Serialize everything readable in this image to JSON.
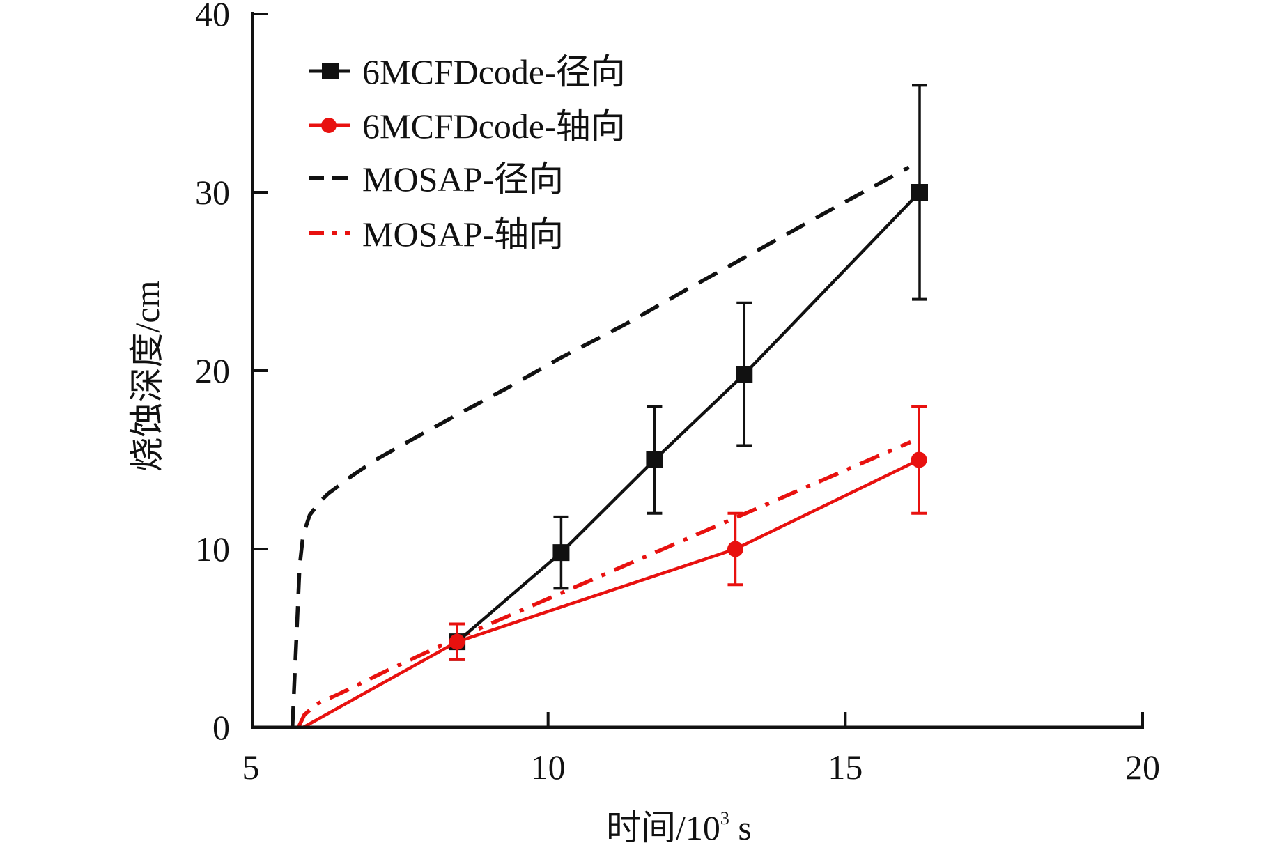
{
  "chart_data": {
    "type": "line",
    "title": "",
    "xlabel": "时间/10³ s",
    "xlabel_main": "时间/10",
    "xlabel_sup": "3",
    "xlabel_unit": " s",
    "ylabel": "烧蚀深度/cm",
    "xlim": [
      5,
      20
    ],
    "ylim": [
      0,
      40
    ],
    "xticks": [
      5,
      10,
      15,
      20
    ],
    "yticks": [
      0,
      10,
      20,
      30,
      40
    ],
    "xtick_labels": [
      "5",
      "10",
      "15",
      "20"
    ],
    "ytick_labels": [
      "0",
      "10",
      "20",
      "30",
      "40"
    ],
    "grid": false,
    "legend_position": "top-left",
    "series": [
      {
        "name": "6MCFDcode-径向",
        "color": "#111111",
        "style": "solid",
        "marker": "square",
        "x": [
          8.47,
          10.22,
          11.79,
          13.3,
          16.25
        ],
        "y": [
          4.8,
          9.8,
          15.0,
          19.8,
          30.0
        ],
        "yerr": [
          1.0,
          2.0,
          3.0,
          4.0,
          6.0
        ]
      },
      {
        "name": "6MCFDcode-轴向",
        "color": "#e8110f",
        "style": "solid",
        "marker": "circle",
        "x": [
          5.88,
          8.47,
          13.15,
          16.24
        ],
        "y": [
          0.0,
          4.8,
          10.0,
          15.0
        ],
        "yerr": [
          null,
          1.0,
          2.0,
          3.0
        ]
      },
      {
        "name": "MOSAP-径向",
        "color": "#111111",
        "style": "dashed",
        "marker": "none",
        "x": [
          5.7,
          5.74,
          5.78,
          5.82,
          5.88,
          5.99,
          6.15,
          6.3,
          6.7,
          7.1,
          7.8,
          8.4,
          9.3,
          10.2,
          11.3,
          12.36,
          13.5,
          14.8,
          16.07
        ],
        "y": [
          0.0,
          3.0,
          6.0,
          9.0,
          10.8,
          11.9,
          12.6,
          13.1,
          14.1,
          15.0,
          16.3,
          17.4,
          19.0,
          20.7,
          22.6,
          24.6,
          26.7,
          29.1,
          31.4
        ]
      },
      {
        "name": "MOSAP-轴向",
        "color": "#e8110f",
        "style": "dash-dot",
        "marker": "none",
        "x": [
          5.8,
          5.9,
          6.1,
          6.5,
          7.3,
          8.47,
          10.2,
          13.15,
          16.1
        ],
        "y": [
          0.0,
          0.7,
          1.3,
          1.9,
          3.2,
          5.0,
          7.5,
          11.75,
          16.0
        ]
      }
    ]
  }
}
